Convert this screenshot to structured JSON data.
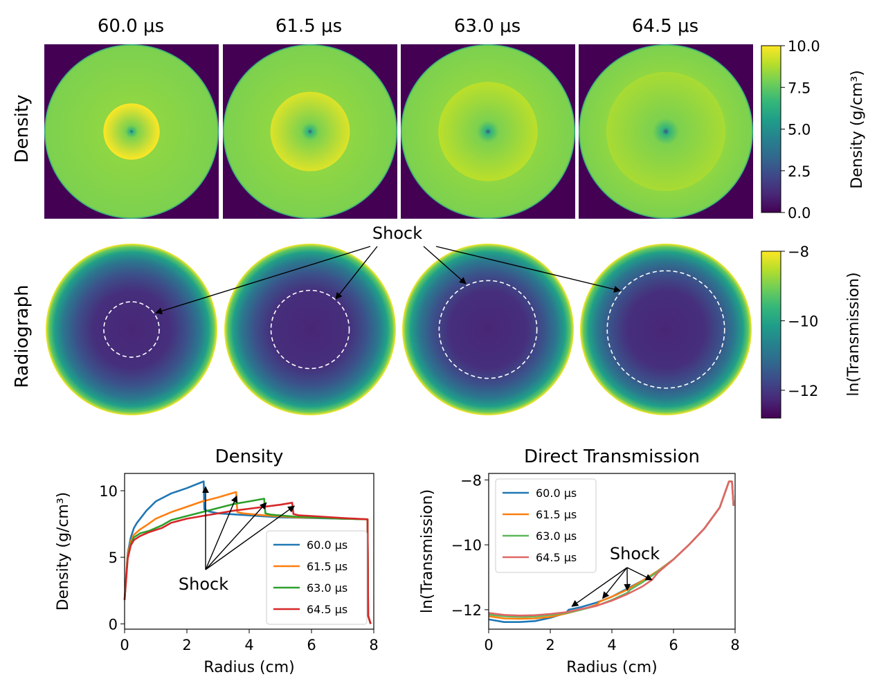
{
  "colors": {
    "viridis": [
      "#440154",
      "#482878",
      "#3e4989",
      "#31688e",
      "#26828e",
      "#1f9e89",
      "#35b779",
      "#6ece58",
      "#b5de2b",
      "#fde725"
    ],
    "series": [
      "#1f77b4",
      "#ff7f0e",
      "#2ca02c",
      "#d62728"
    ],
    "transmission_series": [
      "#1f77b4",
      "#ff7f0e",
      "#5cb85c",
      "#e06666"
    ]
  },
  "row_labels": {
    "density": "Density",
    "radiograph": "Radiograph"
  },
  "times": [
    "60.0 μs",
    "61.5 μs",
    "63.0 μs",
    "64.5 μs"
  ],
  "time_values": [
    60.0,
    61.5,
    63.0,
    64.5
  ],
  "density_colorbar": {
    "label": "Density (g/cm³)",
    "ticks": [
      "0.0",
      "2.5",
      "5.0",
      "7.5",
      "10.0"
    ],
    "range": [
      0,
      10
    ]
  },
  "radiograph_colorbar": {
    "label": "ln(Transmission)",
    "ticks": [
      "−12",
      "−10",
      "−8"
    ],
    "range": [
      -12.8,
      -8
    ]
  },
  "shock_label": "Shock",
  "chart_data": [
    {
      "type": "heatmap",
      "title": "Density",
      "panels": [
        "60.0 μs",
        "61.5 μs",
        "63.0 μs",
        "64.5 μs"
      ],
      "outer_radius_cm": 7.9,
      "shock_radius_cm": [
        2.55,
        3.6,
        4.5,
        5.4
      ],
      "inner_density": [
        10.2,
        9.5,
        9.0,
        8.7
      ],
      "outer_density": 8.0,
      "center_density": 2.5,
      "background_density": 0.0
    },
    {
      "type": "heatmap",
      "title": "Radiograph",
      "panels": [
        "60.0 μs",
        "61.5 μs",
        "63.0 μs",
        "64.5 μs"
      ],
      "outer_radius_cm": 7.9,
      "shock_radius_cm": [
        2.55,
        3.6,
        4.5,
        5.4
      ],
      "center_ln_transmission": -12.3,
      "edge_ln_transmission": -8.0,
      "annotation": "Shock"
    },
    {
      "type": "line",
      "title": "Density",
      "xlabel": "Radius (cm)",
      "ylabel": "Density (g/cm³)",
      "xlim": [
        0,
        8
      ],
      "ylim": [
        -0.4,
        11.3
      ],
      "xticks": [
        0,
        2,
        4,
        6,
        8
      ],
      "yticks": [
        0,
        5,
        10
      ],
      "legend_position": "lower-right",
      "annotation": "Shock",
      "series": [
        {
          "name": "60.0 μs",
          "x": [
            0,
            0.1,
            0.2,
            0.3,
            0.4,
            0.5,
            0.7,
            1.0,
            1.5,
            2.0,
            2.54,
            2.56,
            2.7,
            3.0,
            4.0,
            5.0,
            6.0,
            7.0,
            7.8,
            7.82,
            7.9
          ],
          "y": [
            1.8,
            5.3,
            6.5,
            7.2,
            7.6,
            7.9,
            8.5,
            9.2,
            9.8,
            10.2,
            10.7,
            8.6,
            8.45,
            8.3,
            8.15,
            8.0,
            7.95,
            7.9,
            7.85,
            0.6,
            0.0
          ]
        },
        {
          "name": "61.5 μs",
          "x": [
            0,
            0.1,
            0.2,
            0.3,
            0.5,
            0.7,
            1.0,
            1.5,
            2.0,
            2.5,
            3.0,
            3.58,
            3.62,
            3.8,
            4.5,
            5.5,
            6.5,
            7.0,
            7.8,
            7.82,
            7.9
          ],
          "y": [
            1.8,
            5.2,
            6.2,
            6.7,
            7.1,
            7.4,
            7.9,
            8.4,
            8.8,
            9.2,
            9.5,
            9.9,
            8.4,
            8.3,
            8.15,
            8.0,
            7.95,
            7.9,
            7.85,
            0.6,
            0.0
          ]
        },
        {
          "name": "63.0 μs",
          "x": [
            0,
            0.1,
            0.2,
            0.3,
            0.5,
            0.8,
            1.2,
            1.5,
            2.0,
            2.5,
            3.0,
            3.5,
            4.0,
            4.48,
            4.52,
            4.7,
            5.5,
            6.5,
            7.0,
            7.8,
            7.82,
            7.9
          ],
          "y": [
            1.8,
            5.0,
            6.0,
            6.5,
            6.8,
            7.0,
            7.4,
            7.8,
            8.1,
            8.4,
            8.7,
            9.0,
            9.2,
            9.4,
            8.3,
            8.2,
            8.05,
            7.95,
            7.9,
            7.85,
            0.6,
            0.0
          ]
        },
        {
          "name": "64.5 μs",
          "x": [
            0,
            0.1,
            0.2,
            0.3,
            0.5,
            0.8,
            1.2,
            1.5,
            2.0,
            2.5,
            3.0,
            3.5,
            4.0,
            4.5,
            5.0,
            5.38,
            5.42,
            5.6,
            6.0,
            7.0,
            7.8,
            7.82,
            7.9
          ],
          "y": [
            1.8,
            4.9,
            5.9,
            6.3,
            6.6,
            6.9,
            7.2,
            7.6,
            7.9,
            8.1,
            8.3,
            8.5,
            8.65,
            8.8,
            8.95,
            9.1,
            8.25,
            8.15,
            8.1,
            7.95,
            7.85,
            0.6,
            0.0
          ]
        }
      ]
    },
    {
      "type": "line",
      "title": "Direct Transmission",
      "xlabel": "Radius (cm)",
      "ylabel": "ln(Transmission)",
      "xlim": [
        0,
        8
      ],
      "ylim": [
        -12.6,
        -7.8
      ],
      "xticks": [
        0,
        2,
        4,
        6,
        8
      ],
      "yticks": [
        -12,
        -10,
        -8
      ],
      "legend_position": "upper-left",
      "annotation": "Shock",
      "series": [
        {
          "name": "60.0 μs",
          "x": [
            0,
            0.5,
            1.0,
            1.5,
            2.0,
            2.5,
            2.6,
            3.0,
            3.5,
            4.0,
            4.5,
            5.0,
            5.5,
            6.0,
            6.5,
            7.0,
            7.5,
            7.8,
            7.9,
            7.95
          ],
          "y": [
            -12.3,
            -12.38,
            -12.38,
            -12.35,
            -12.25,
            -12.1,
            -12.0,
            -11.92,
            -11.78,
            -11.6,
            -11.35,
            -11.1,
            -10.8,
            -10.45,
            -10.0,
            -9.5,
            -8.85,
            -8.05,
            -8.05,
            -8.8
          ]
        },
        {
          "name": "61.5 μs",
          "x": [
            0,
            0.5,
            1.0,
            1.5,
            2.0,
            2.5,
            3.0,
            3.5,
            3.6,
            4.0,
            4.5,
            5.0,
            5.5,
            6.0,
            6.5,
            7.0,
            7.5,
            7.8,
            7.9,
            7.95
          ],
          "y": [
            -12.2,
            -12.27,
            -12.28,
            -12.27,
            -12.22,
            -12.12,
            -12.0,
            -11.85,
            -11.75,
            -11.6,
            -11.38,
            -11.1,
            -10.8,
            -10.45,
            -10.0,
            -9.5,
            -8.85,
            -8.05,
            -8.05,
            -8.8
          ]
        },
        {
          "name": "63.0 μs",
          "x": [
            0,
            0.5,
            1.0,
            1.5,
            2.0,
            2.5,
            3.0,
            3.5,
            4.0,
            4.5,
            4.6,
            5.0,
            5.5,
            6.0,
            6.5,
            7.0,
            7.5,
            7.8,
            7.9,
            7.95
          ],
          "y": [
            -12.15,
            -12.2,
            -12.22,
            -12.21,
            -12.16,
            -12.1,
            -12.0,
            -11.88,
            -11.7,
            -11.48,
            -11.38,
            -11.15,
            -10.82,
            -10.45,
            -10.0,
            -9.5,
            -8.85,
            -8.05,
            -8.05,
            -8.8
          ]
        },
        {
          "name": "64.5 μs",
          "x": [
            0,
            0.5,
            1.0,
            1.5,
            2.0,
            2.5,
            3.0,
            3.5,
            4.0,
            4.5,
            5.0,
            5.3,
            5.5,
            6.0,
            6.5,
            7.0,
            7.5,
            7.8,
            7.9,
            7.95
          ],
          "y": [
            -12.1,
            -12.16,
            -12.18,
            -12.17,
            -12.13,
            -12.08,
            -11.98,
            -11.88,
            -11.72,
            -11.52,
            -11.28,
            -11.08,
            -10.85,
            -10.45,
            -10.0,
            -9.5,
            -8.85,
            -8.05,
            -8.05,
            -8.8
          ]
        }
      ]
    }
  ]
}
